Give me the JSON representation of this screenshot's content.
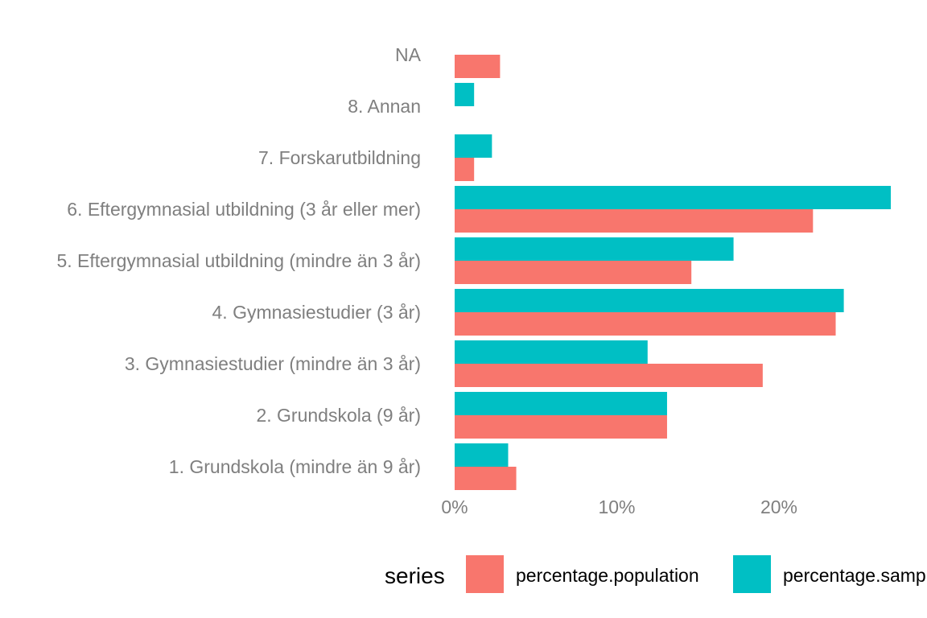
{
  "chart_data": {
    "type": "bar",
    "orientation": "horizontal",
    "categories": [
      "1. Grundskola (mindre än 9 år)",
      "2. Grundskola (9 år)",
      "3. Gymnasiestudier (mindre än 3 år)",
      "4. Gymnasiestudier (3 år)",
      "5. Eftergymnasial utbildning (mindre än 3 år)",
      "6. Eftergymnasial utbildning (3 år eller mer)",
      "7. Forskarutbildning",
      "8. Annan",
      "NA"
    ],
    "series": [
      {
        "name": "percentage.population",
        "color": "#F8766D",
        "values": [
          3.8,
          13.1,
          19.0,
          23.5,
          14.6,
          22.1,
          1.2,
          null,
          2.8
        ]
      },
      {
        "name": "percentage.sample",
        "color": "#00BFC4",
        "values": [
          3.3,
          13.1,
          11.9,
          24.0,
          17.2,
          26.9,
          2.3,
          1.2,
          null
        ]
      }
    ],
    "x_ticks": [
      "0%",
      "10%",
      "20%"
    ],
    "xlim": [
      0,
      28
    ],
    "grid": false,
    "legend": {
      "title": "series",
      "position": "bottom",
      "entries": [
        "percentage.population",
        "percentage.sample"
      ]
    }
  }
}
